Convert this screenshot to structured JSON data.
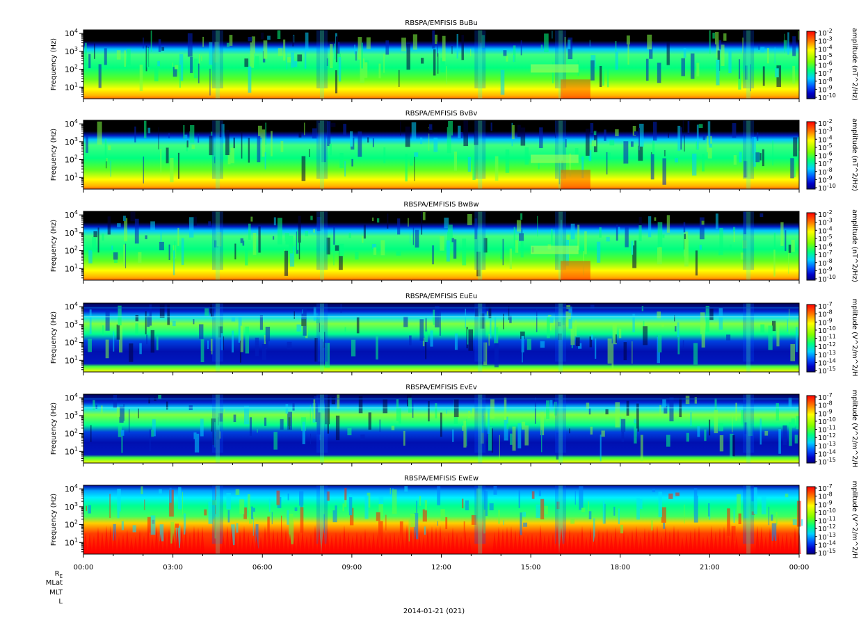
{
  "chart_data": [
    {
      "type": "heatmap",
      "title": "RBSPA/EMFISIS  BuBu",
      "ylabel": "Frequency (Hz)",
      "y_scale": "log",
      "y_ticks": [
        "10^1",
        "10^2",
        "10^3",
        "10^4"
      ],
      "colorbar_label": "amplitude (nT^2/Hz)",
      "colorbar_ticks": [
        "10^-2",
        "10^-3",
        "10^-4",
        "10^-5",
        "10^-6",
        "10^-7",
        "10^-8",
        "10^-9",
        "10^-10"
      ],
      "colorbar_range": [
        -10,
        -2
      ],
      "background": "quiet"
    },
    {
      "type": "heatmap",
      "title": "RBSPA/EMFISIS  BvBv",
      "ylabel": "Frequency (Hz)",
      "y_scale": "log",
      "y_ticks": [
        "10^1",
        "10^2",
        "10^3",
        "10^4"
      ],
      "colorbar_label": "amplitude (nT^2/Hz)",
      "colorbar_ticks": [
        "10^-2",
        "10^-3",
        "10^-4",
        "10^-5",
        "10^-6",
        "10^-7",
        "10^-8",
        "10^-9",
        "10^-10"
      ],
      "colorbar_range": [
        -10,
        -2
      ],
      "background": "quiet"
    },
    {
      "type": "heatmap",
      "title": "RBSPA/EMFISIS  BwBw",
      "ylabel": "Frequency (Hz)",
      "y_scale": "log",
      "y_ticks": [
        "10^1",
        "10^2",
        "10^3",
        "10^4"
      ],
      "colorbar_label": "amplitude (nT^2/Hz)",
      "colorbar_ticks": [
        "10^-2",
        "10^-3",
        "10^-4",
        "10^-5",
        "10^-6",
        "10^-7",
        "10^-8",
        "10^-9",
        "10^-10"
      ],
      "colorbar_range": [
        -10,
        -2
      ],
      "background": "quiet"
    },
    {
      "type": "heatmap",
      "title": "RBSPA/EMFISIS  EuEu",
      "ylabel": "Frequency (Hz)",
      "y_scale": "log",
      "y_ticks": [
        "10^1",
        "10^2",
        "10^3",
        "10^4"
      ],
      "colorbar_label": "mplitude (V^2/m^2/H",
      "colorbar_ticks": [
        "10^-7",
        "10^-8",
        "10^-9",
        "10^-10",
        "10^-11",
        "10^-12",
        "10^-13",
        "10^-14",
        "10^-15"
      ],
      "colorbar_range": [
        -15,
        -7
      ],
      "background": "efield"
    },
    {
      "type": "heatmap",
      "title": "RBSPA/EMFISIS  EvEv",
      "ylabel": "Frequency (Hz)",
      "y_scale": "log",
      "y_ticks": [
        "10^1",
        "10^2",
        "10^3",
        "10^4"
      ],
      "colorbar_label": "mplitude (V^2/m^2/H",
      "colorbar_ticks": [
        "10^-7",
        "10^-8",
        "10^-9",
        "10^-10",
        "10^-11",
        "10^-12",
        "10^-13",
        "10^-14",
        "10^-15"
      ],
      "colorbar_range": [
        -15,
        -7
      ],
      "background": "efield"
    },
    {
      "type": "heatmap",
      "title": "RBSPA/EMFISIS  EwEw",
      "ylabel": "Frequency (Hz)",
      "y_scale": "log",
      "y_ticks": [
        "10^1",
        "10^2",
        "10^3",
        "10^4"
      ],
      "colorbar_label": "mplitude (V^2/m^2/H",
      "colorbar_ticks": [
        "10^-7",
        "10^-8",
        "10^-9",
        "10^-10",
        "10^-11",
        "10^-12",
        "10^-13",
        "10^-14",
        "10^-15"
      ],
      "colorbar_range": [
        -15,
        -7
      ],
      "background": "ew"
    }
  ],
  "x_axis": {
    "tick_labels": [
      "00:00",
      "03:00",
      "06:00",
      "09:00",
      "12:00",
      "15:00",
      "18:00",
      "21:00",
      "00:00"
    ]
  },
  "position_labels": [
    "R_E",
    "MLat",
    "MLT",
    "L"
  ],
  "date_label": "2014-01-21 (021)"
}
